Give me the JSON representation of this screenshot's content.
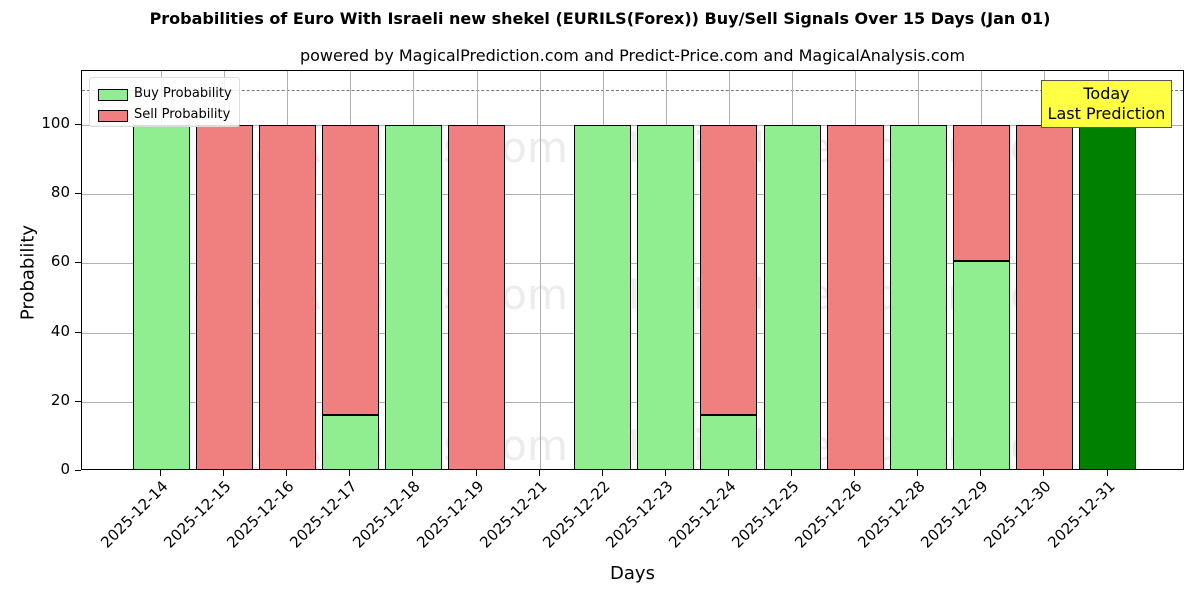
{
  "chart_data": {
    "type": "bar",
    "stacked": true,
    "title": "Probabilities of Euro With Israeli new shekel (EURILS(Forex)) Buy/Sell Signals Over 15 Days (Jan 01)",
    "subtitle": "powered by MagicalPrediction.com and Predict-Price.com and MagicalAnalysis.com",
    "xlabel": "Days",
    "ylabel": "Probability",
    "ylim": [
      0,
      115
    ],
    "yticks": [
      0,
      20,
      40,
      60,
      80,
      100
    ],
    "grid": true,
    "legend_position": "upper left",
    "categories": [
      "2025-12-14",
      "2025-12-15",
      "2025-12-16",
      "2025-12-17",
      "2025-12-18",
      "2025-12-19",
      "2025-12-21",
      "2025-12-22",
      "2025-12-23",
      "2025-12-24",
      "2025-12-25",
      "2025-12-26",
      "2025-12-28",
      "2025-12-29",
      "2025-12-30",
      "2025-12-31"
    ],
    "series": [
      {
        "name": "Buy Probability",
        "color": "#90ee90",
        "values": [
          100,
          0,
          0,
          16.2,
          100,
          0,
          0,
          100,
          100,
          16.2,
          100,
          0,
          100,
          60.7,
          0,
          100
        ]
      },
      {
        "name": "Sell Probability",
        "color": "#f08080",
        "values": [
          0,
          100,
          100,
          83.8,
          0,
          100,
          0,
          0,
          0,
          83.8,
          0,
          100,
          0,
          39.3,
          100,
          0
        ]
      }
    ],
    "highlight": {
      "category": "2025-12-31",
      "color": "#008000"
    },
    "reference_line": {
      "y": 110,
      "style": "dashed"
    },
    "annotation": {
      "line1": "Today",
      "line2": "Last Prediction",
      "bg": "#ffff44"
    },
    "watermarks": [
      "MagicalAnalysis.com",
      "MagicalPrediction.com"
    ]
  }
}
